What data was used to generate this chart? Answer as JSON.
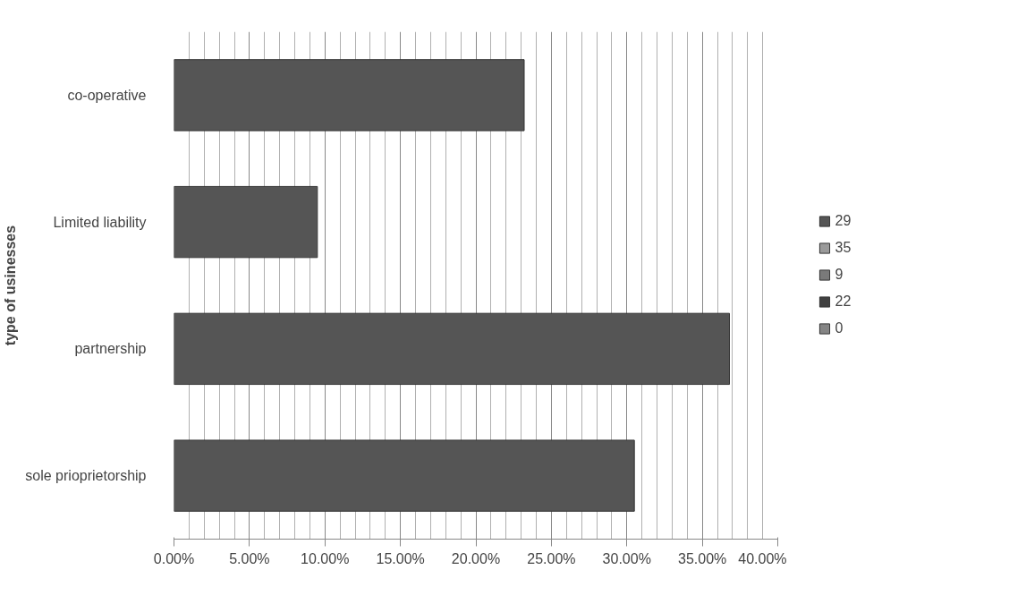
{
  "chart_data": {
    "type": "bar",
    "orientation": "horizontal",
    "ylabel": "type of usinesses",
    "categories": [
      "co-operative",
      "Limited liability",
      "partnership",
      "sole prioprietorship"
    ],
    "series": [
      {
        "name": "29",
        "color": "#555555",
        "values": [
          23.2,
          9.5,
          36.8,
          30.5
        ]
      },
      {
        "name": "35",
        "color": "#9a9a9a",
        "values": [
          null,
          null,
          null,
          null
        ]
      },
      {
        "name": "9",
        "color": "#7a7a7a",
        "values": [
          null,
          null,
          null,
          null
        ]
      },
      {
        "name": "22",
        "color": "#404040",
        "values": [
          null,
          null,
          null,
          null
        ]
      },
      {
        "name": "0",
        "color": "#858585",
        "values": [
          null,
          null,
          null,
          null
        ]
      }
    ],
    "xlim": [
      0,
      40
    ],
    "xticks": [
      {
        "value": 0,
        "label": "0.00%"
      },
      {
        "value": 5,
        "label": "5.00%"
      },
      {
        "value": 10,
        "label": "10.00%"
      },
      {
        "value": 15,
        "label": "15.00%"
      },
      {
        "value": 20,
        "label": "20.00%"
      },
      {
        "value": 25,
        "label": "25.00%"
      },
      {
        "value": 30,
        "label": "30.00%"
      },
      {
        "value": 35,
        "label": "35.00%"
      },
      {
        "value": 40,
        "label": "40.00%"
      }
    ],
    "grid": "x",
    "legend": "right"
  }
}
